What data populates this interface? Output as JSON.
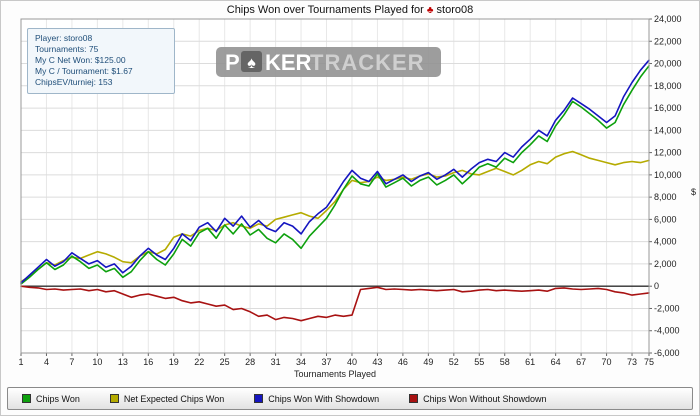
{
  "title": {
    "text": "Chips Won over Tournaments Played for",
    "suit": "♣",
    "player": "storo08"
  },
  "info_box": {
    "lines": [
      "Player: storo08",
      "Tournaments: 75",
      "My C Net Won: $125.00",
      "My C / Tournament: $1.67",
      "ChipsEV/turniej: 153"
    ]
  },
  "watermark": {
    "part1": "P",
    "suit": "♠",
    "part2": "KER",
    "part3": "TRACKER"
  },
  "chart_data": {
    "type": "line",
    "title": "Chips Won over Tournaments Played for storo08",
    "xlabel": "Tournaments Played",
    "ylabel": "$",
    "xlim": [
      1,
      75
    ],
    "ylim": [
      -6000,
      24000
    ],
    "ytick_step": 2000,
    "xticks": [
      1,
      4,
      7,
      10,
      13,
      16,
      19,
      22,
      25,
      28,
      31,
      34,
      37,
      40,
      43,
      46,
      49,
      52,
      55,
      58,
      61,
      64,
      67,
      70,
      73,
      75
    ],
    "grid": true,
    "legend_position": "bottom",
    "x": [
      1,
      2,
      3,
      4,
      5,
      6,
      7,
      8,
      9,
      10,
      11,
      12,
      13,
      14,
      15,
      16,
      17,
      18,
      19,
      20,
      21,
      22,
      23,
      24,
      25,
      26,
      27,
      28,
      29,
      30,
      31,
      32,
      33,
      34,
      35,
      36,
      37,
      38,
      39,
      40,
      41,
      42,
      43,
      44,
      45,
      46,
      47,
      48,
      49,
      50,
      51,
      52,
      53,
      54,
      55,
      56,
      57,
      58,
      59,
      60,
      61,
      62,
      63,
      64,
      65,
      66,
      67,
      68,
      69,
      70,
      71,
      72,
      73,
      74,
      75
    ],
    "draw_order": [
      3,
      1,
      0,
      2
    ],
    "series": [
      {
        "name": "Chips Won",
        "color": "#0da00d",
        "values": [
          200,
          800,
          1500,
          2100,
          1500,
          1900,
          2700,
          2200,
          1600,
          1900,
          1300,
          1600,
          800,
          1300,
          2300,
          3100,
          2400,
          1900,
          2900,
          4200,
          3600,
          4800,
          5200,
          4300,
          5500,
          4700,
          5600,
          4600,
          5100,
          4300,
          3900,
          4700,
          4200,
          3400,
          4500,
          5300,
          6100,
          7300,
          8700,
          9900,
          9200,
          9000,
          10100,
          8900,
          9300,
          9700,
          9000,
          9500,
          9800,
          9100,
          9500,
          10000,
          9200,
          9900,
          10700,
          11000,
          10700,
          11500,
          11100,
          12000,
          12700,
          13500,
          13000,
          14400,
          15400,
          16600,
          16100,
          15500,
          14900,
          14200,
          14700,
          16300,
          17600,
          18800,
          19800
        ]
      },
      {
        "name": "Net Expected Chips Won",
        "color": "#b5ab00",
        "values": [
          400,
          900,
          1500,
          2100,
          1900,
          2300,
          2600,
          2500,
          2800,
          3100,
          2900,
          2600,
          2200,
          2100,
          2700,
          3100,
          2900,
          3300,
          4400,
          4700,
          4500,
          5000,
          5200,
          5000,
          5500,
          5700,
          5400,
          5200,
          5600,
          5400,
          6000,
          6200,
          6400,
          6600,
          6300,
          6100,
          6800,
          7600,
          8700,
          9500,
          9300,
          9400,
          9800,
          9500,
          9600,
          9800,
          9600,
          9900,
          10100,
          9800,
          9900,
          10200,
          10400,
          10100,
          10000,
          10300,
          10600,
          10300,
          10000,
          10400,
          10900,
          11200,
          11000,
          11600,
          11900,
          12100,
          11800,
          11500,
          11300,
          11100,
          10900,
          11100,
          11200,
          11100,
          11300
        ]
      },
      {
        "name": "Chips Won With Showdown",
        "color": "#1515c0",
        "values": [
          300,
          1000,
          1700,
          2400,
          1800,
          2200,
          3000,
          2500,
          2000,
          2300,
          1700,
          2000,
          1200,
          1800,
          2700,
          3400,
          2800,
          2400,
          3400,
          4700,
          4100,
          5300,
          5700,
          4900,
          6100,
          5400,
          6300,
          5300,
          5900,
          5200,
          4900,
          5700,
          5400,
          4700,
          5800,
          6500,
          7100,
          8200,
          9400,
          10400,
          9700,
          9400,
          10300,
          9200,
          9600,
          10000,
          9400,
          9900,
          10200,
          9600,
          10000,
          10500,
          9800,
          10500,
          11100,
          11400,
          11200,
          12000,
          11600,
          12500,
          13200,
          14000,
          13500,
          14900,
          15800,
          16900,
          16400,
          15900,
          15300,
          14700,
          15300,
          17000,
          18300,
          19400,
          20300
        ]
      },
      {
        "name": "Chips Won Without Showdown",
        "color": "#a81212",
        "values": [
          0,
          -100,
          -150,
          -300,
          -250,
          -350,
          -300,
          -250,
          -400,
          -300,
          -500,
          -400,
          -700,
          -1000,
          -800,
          -700,
          -900,
          -1100,
          -1000,
          -1300,
          -1500,
          -1400,
          -1600,
          -1800,
          -1700,
          -2100,
          -2000,
          -2300,
          -2700,
          -2600,
          -3000,
          -2800,
          -2900,
          -3100,
          -2900,
          -2700,
          -2800,
          -2600,
          -2700,
          -2600,
          -300,
          -200,
          -100,
          -300,
          -250,
          -300,
          -350,
          -300,
          -350,
          -400,
          -350,
          -300,
          -500,
          -450,
          -350,
          -300,
          -400,
          -350,
          -400,
          -450,
          -400,
          -350,
          -450,
          -200,
          -150,
          -250,
          -300,
          -250,
          -200,
          -300,
          -500,
          -600,
          -800,
          -700,
          -600
        ]
      }
    ]
  }
}
